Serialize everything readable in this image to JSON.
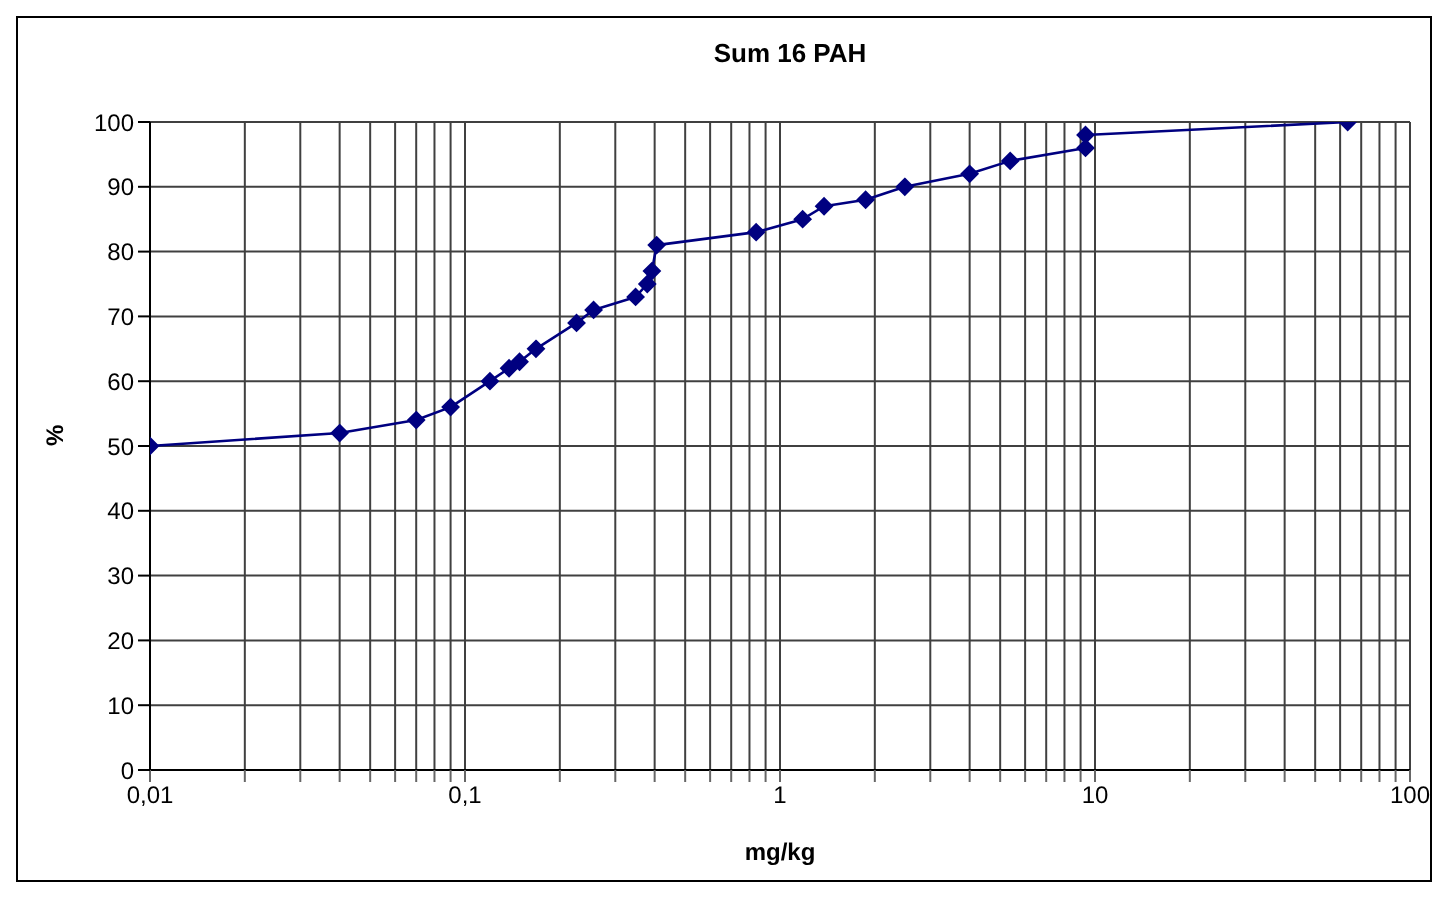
{
  "chart_data": {
    "type": "line",
    "title": "Sum 16 PAH",
    "xlabel": "mg/kg",
    "ylabel": "%",
    "log": "x",
    "grid": true,
    "marker": "diamond",
    "line_style": "solid",
    "xlim": [
      0.01,
      100
    ],
    "xticks": [
      {
        "value": 0.01,
        "label": "0,01"
      },
      {
        "value": 0.02,
        "label": null
      },
      {
        "value": 0.03,
        "label": null
      },
      {
        "value": 0.04,
        "label": null
      },
      {
        "value": 0.05,
        "label": null
      },
      {
        "value": 0.06,
        "label": null
      },
      {
        "value": 0.07,
        "label": null
      },
      {
        "value": 0.08,
        "label": null
      },
      {
        "value": 0.09,
        "label": null
      },
      {
        "value": 0.1,
        "label": "0,1"
      },
      {
        "value": 0.2,
        "label": null
      },
      {
        "value": 0.3,
        "label": null
      },
      {
        "value": 0.4,
        "label": null
      },
      {
        "value": 0.5,
        "label": null
      },
      {
        "value": 0.6,
        "label": null
      },
      {
        "value": 0.7,
        "label": null
      },
      {
        "value": 0.8,
        "label": null
      },
      {
        "value": 0.9,
        "label": null
      },
      1,
      {
        "value": 2,
        "label": null
      },
      {
        "value": 3,
        "label": null
      },
      {
        "value": 4,
        "label": null
      },
      {
        "value": 5,
        "label": null
      },
      {
        "value": 6,
        "label": null
      },
      {
        "value": 7,
        "label": null
      },
      {
        "value": 8,
        "label": null
      },
      {
        "value": 9,
        "label": null
      },
      10,
      {
        "value": 20,
        "label": null
      },
      {
        "value": 30,
        "label": null
      },
      {
        "value": 40,
        "label": null
      },
      {
        "value": 50,
        "label": null
      },
      {
        "value": 60,
        "label": null
      },
      {
        "value": 70,
        "label": null
      },
      {
        "value": 80,
        "label": null
      },
      {
        "value": 90,
        "label": null
      },
      100
    ],
    "ylim": [
      0,
      100
    ],
    "yticks": [
      0,
      10,
      20,
      30,
      40,
      50,
      60,
      70,
      80,
      90,
      100
    ],
    "series": [
      {
        "color": "#000080",
        "x": [
          0.01,
          0.04,
          0.07,
          0.09,
          0.12,
          0.138,
          0.149,
          0.168,
          0.226,
          0.256,
          0.348,
          0.379,
          0.392,
          0.406,
          0.84,
          1.18,
          1.38,
          1.87,
          2.49,
          4,
          5.38,
          9.33,
          9.33,
          63.4
        ],
        "values": [
          50,
          52,
          54,
          56,
          60,
          62,
          63,
          65,
          69,
          71,
          73,
          75,
          77,
          81,
          83,
          85,
          87,
          88,
          90,
          92,
          94,
          96,
          98,
          100
        ]
      }
    ]
  }
}
